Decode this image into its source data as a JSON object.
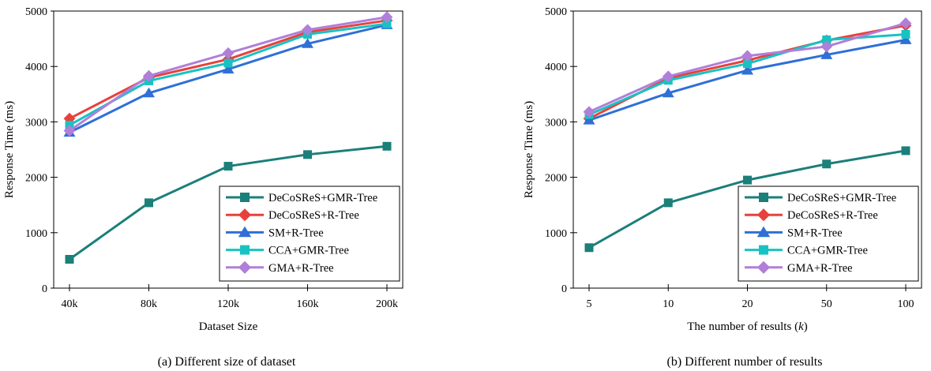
{
  "chart_data": [
    {
      "type": "line",
      "title": "",
      "caption": "(a)  Different size of dataset",
      "xlabel": "Dataset Size",
      "ylabel": "Response Time (ms)",
      "categories": [
        "40k",
        "80k",
        "120k",
        "160k",
        "200k"
      ],
      "ylim": [
        0,
        5000
      ],
      "yticks": [
        0,
        1000,
        2000,
        3000,
        4000,
        5000
      ],
      "legend_position": "lower-right",
      "series": [
        {
          "name": "DeCoSReS+GMR-Tree",
          "color": "#1b7f7a",
          "marker": "square",
          "values": [
            520,
            1540,
            2200,
            2410,
            2560
          ]
        },
        {
          "name": "DeCoSReS+R-Tree",
          "color": "#e8413c",
          "marker": "diamond",
          "values": [
            3060,
            3800,
            4130,
            4620,
            4830
          ]
        },
        {
          "name": "SM+R-Tree",
          "color": "#2f6fd6",
          "marker": "triangle",
          "values": [
            2810,
            3520,
            3950,
            4410,
            4750
          ]
        },
        {
          "name": "CCA+GMR-Tree",
          "color": "#19c2c2",
          "marker": "square",
          "values": [
            2940,
            3740,
            4060,
            4580,
            4770
          ]
        },
        {
          "name": "GMA+R-Tree",
          "color": "#b07fd9",
          "marker": "diamond",
          "values": [
            2840,
            3830,
            4240,
            4660,
            4890
          ]
        }
      ]
    },
    {
      "type": "line",
      "title": "",
      "caption": "(b)  Different number of results",
      "xlabel": "The number of results (",
      "xlabel_italic": "k",
      "xlabel_suffix": ")",
      "ylabel": "Response Time (ms)",
      "categories": [
        "5",
        "10",
        "20",
        "50",
        "100"
      ],
      "ylim": [
        0,
        5000
      ],
      "yticks": [
        0,
        1000,
        2000,
        3000,
        4000,
        5000
      ],
      "legend_position": "lower-right",
      "series": [
        {
          "name": "DeCoSReS+GMR-Tree",
          "color": "#1b7f7a",
          "marker": "square",
          "values": [
            730,
            1540,
            1950,
            2240,
            2480
          ]
        },
        {
          "name": "DeCoSReS+R-Tree",
          "color": "#e8413c",
          "marker": "diamond",
          "values": [
            3060,
            3790,
            4110,
            4470,
            4740
          ]
        },
        {
          "name": "SM+R-Tree",
          "color": "#2f6fd6",
          "marker": "triangle",
          "values": [
            3030,
            3520,
            3930,
            4210,
            4480
          ]
        },
        {
          "name": "CCA+GMR-Tree",
          "color": "#19c2c2",
          "marker": "square",
          "values": [
            3130,
            3750,
            4050,
            4480,
            4580
          ]
        },
        {
          "name": "GMA+R-Tree",
          "color": "#b07fd9",
          "marker": "diamond",
          "values": [
            3180,
            3820,
            4190,
            4360,
            4780
          ]
        }
      ]
    }
  ]
}
